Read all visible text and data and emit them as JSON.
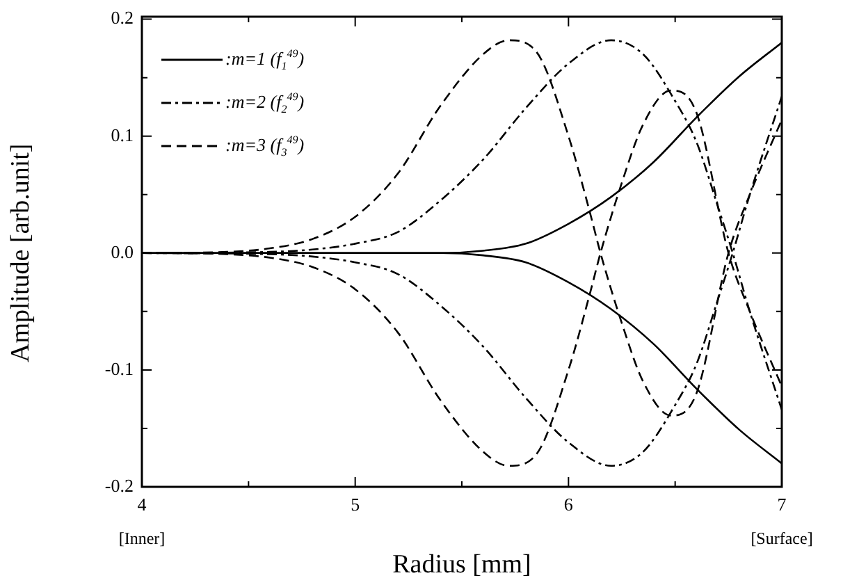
{
  "chart_data": {
    "type": "line",
    "xlabel": "Radius [mm]",
    "ylabel": "Amplitude [arb.unit]",
    "xlim": [
      4,
      7
    ],
    "ylim": [
      -0.2,
      0.2
    ],
    "xticks": [
      4,
      {
        "value": 4.5,
        "label": null
      },
      5,
      {
        "value": 5.5,
        "label": null
      },
      6,
      {
        "value": 6.5,
        "label": null
      },
      7
    ],
    "yticks": [
      {
        "value": -0.2,
        "label": "-0.2"
      },
      {
        "value": -0.15,
        "label": null
      },
      {
        "value": -0.1,
        "label": "-0.1"
      },
      {
        "value": -0.05,
        "label": null
      },
      {
        "value": 0,
        "label": "0.0"
      },
      {
        "value": 0.05,
        "label": null
      },
      {
        "value": 0.1,
        "label": "0.1"
      },
      {
        "value": 0.15,
        "label": null
      },
      {
        "value": 0.2,
        "label": "0.2"
      }
    ],
    "legend": "top left",
    "annotations": [
      "[Inner]",
      "[Surface]"
    ],
    "series": [
      {
        "name": ":m=1 (f$_{1}$$^{49}$)",
        "color": "#000000",
        "line_style": "solid",
        "x": [
          4,
          5,
          5.4,
          5.6,
          5.8,
          6.0,
          6.2,
          6.4,
          6.6,
          6.8,
          7.0
        ],
        "values": [
          0,
          0,
          0,
          0.002,
          0.008,
          0.025,
          0.048,
          0.078,
          0.116,
          0.151,
          0.18
        ]
      },
      {
        "name": ":m=2 (f$_{2}$$^{49}$)",
        "color": "#000000",
        "line_style": "dashdot",
        "x": [
          4,
          4.6,
          4.8,
          5.0,
          5.2,
          5.4,
          5.6,
          5.8,
          6.0,
          6.2,
          6.35,
          6.5,
          6.6,
          6.7,
          6.77,
          6.85,
          7.0
        ],
        "values": [
          0,
          0.001,
          0.003,
          0.008,
          0.018,
          0.045,
          0.08,
          0.124,
          0.162,
          0.182,
          0.17,
          0.13,
          0.095,
          0.04,
          0,
          -0.05,
          -0.134
        ]
      },
      {
        "name": ":m=3 (f$_{3}$$^{49}$)",
        "color": "#000000",
        "line_style": "dashed",
        "x": [
          4,
          4.4,
          4.6,
          4.8,
          5.0,
          5.2,
          5.4,
          5.6,
          5.72,
          5.85,
          6.0,
          6.1,
          6.15,
          6.25,
          6.35,
          6.48,
          6.6,
          6.75,
          6.85,
          7.0
        ],
        "values": [
          0,
          0.001,
          0.004,
          0.012,
          0.031,
          0.068,
          0.126,
          0.17,
          0.182,
          0.172,
          0.1,
          0.035,
          0,
          -0.06,
          -0.11,
          -0.139,
          -0.12,
          0,
          0.05,
          0.114
        ]
      },
      {
        "color": "#000000",
        "line_style": "solid",
        "x": [
          4,
          5,
          5.4,
          5.6,
          5.8,
          6.0,
          6.2,
          6.4,
          6.6,
          6.8,
          7.0
        ],
        "values": [
          0,
          0,
          0,
          -0.002,
          -0.008,
          -0.025,
          -0.048,
          -0.078,
          -0.116,
          -0.151,
          -0.18
        ]
      },
      {
        "color": "#000000",
        "line_style": "dashdot",
        "x": [
          4,
          4.6,
          4.8,
          5.0,
          5.2,
          5.4,
          5.6,
          5.8,
          6.0,
          6.2,
          6.35,
          6.5,
          6.6,
          6.7,
          6.77,
          6.85,
          7.0
        ],
        "values": [
          0,
          -0.001,
          -0.003,
          -0.008,
          -0.018,
          -0.045,
          -0.08,
          -0.124,
          -0.162,
          -0.182,
          -0.17,
          -0.13,
          -0.095,
          -0.04,
          0,
          0.05,
          0.134
        ]
      },
      {
        "color": "#000000",
        "line_style": "dashed",
        "x": [
          4,
          4.4,
          4.6,
          4.8,
          5.0,
          5.2,
          5.4,
          5.6,
          5.72,
          5.85,
          6.0,
          6.1,
          6.15,
          6.25,
          6.35,
          6.48,
          6.6,
          6.75,
          6.85,
          7.0
        ],
        "values": [
          0,
          -0.001,
          -0.004,
          -0.012,
          -0.031,
          -0.068,
          -0.126,
          -0.17,
          -0.182,
          -0.172,
          -0.1,
          -0.035,
          0,
          0.06,
          0.11,
          0.139,
          0.12,
          0,
          -0.05,
          -0.114
        ]
      }
    ]
  }
}
